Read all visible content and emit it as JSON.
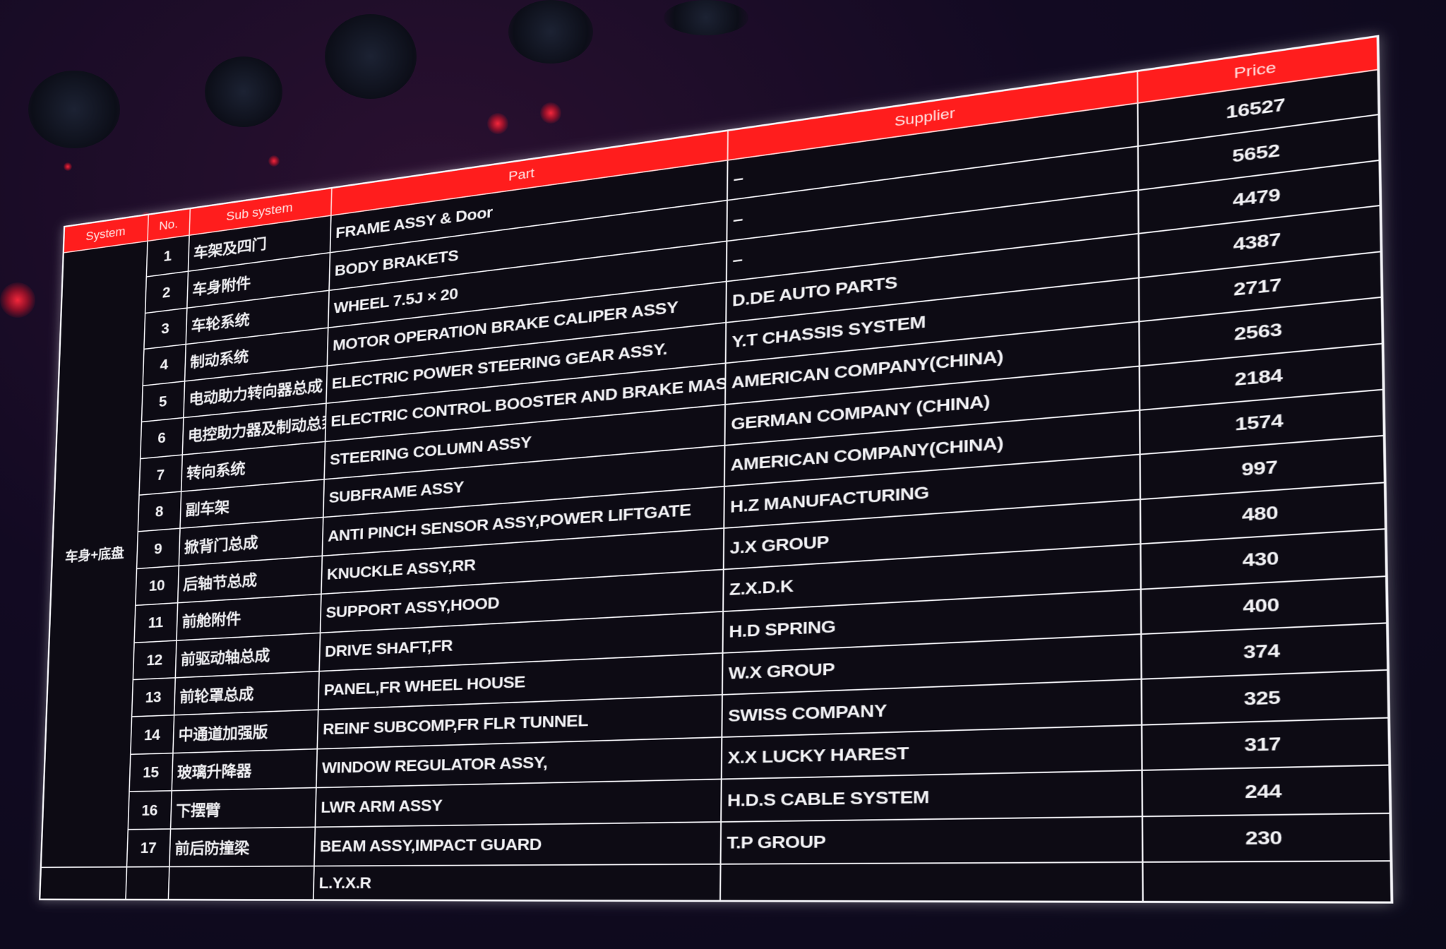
{
  "table": {
    "headers": {
      "system": "System",
      "no": "No.",
      "subsystem": "Sub system",
      "part": "Part",
      "supplier": "Supplier",
      "price": "Price"
    },
    "system_value": "车身+底盘",
    "rows": [
      {
        "no": "1",
        "subsystem": "车架及四门",
        "part": "FRAME ASSY & Door",
        "supplier": "–",
        "price": "16527"
      },
      {
        "no": "2",
        "subsystem": "车身附件",
        "part": "BODY BRAKETS",
        "supplier": "–",
        "price": "5652"
      },
      {
        "no": "3",
        "subsystem": "车轮系统",
        "part": "WHEEL 7.5J × 20",
        "supplier": "–",
        "price": "4479"
      },
      {
        "no": "4",
        "subsystem": "制动系统",
        "part": "MOTOR OPERATION BRAKE CALIPER ASSY",
        "supplier": "D.DE AUTO PARTS",
        "price": "4387"
      },
      {
        "no": "5",
        "subsystem": "电动助力转向器总成",
        "part": "ELECTRIC POWER STEERING GEAR ASSY.",
        "supplier": "Y.T CHASSIS SYSTEM",
        "price": "2717"
      },
      {
        "no": "6",
        "subsystem": "电控助力器及制动总泵",
        "part": "ELECTRIC CONTROL BOOSTER AND BRAKE MASTER CYLINDER",
        "supplier": "AMERICAN COMPANY(CHINA)",
        "price": "2563"
      },
      {
        "no": "7",
        "subsystem": "转向系统",
        "part": "STEERING COLUMN ASSY",
        "supplier": "GERMAN COMPANY (CHINA)",
        "price": "2184"
      },
      {
        "no": "8",
        "subsystem": "副车架",
        "part": "SUBFRAME ASSY",
        "supplier": "AMERICAN COMPANY(CHINA)",
        "price": "1574"
      },
      {
        "no": "9",
        "subsystem": "掀背门总成",
        "part": "ANTI PINCH SENSOR ASSY,POWER LIFTGATE",
        "supplier": "H.Z MANUFACTURING",
        "price": "997"
      },
      {
        "no": "10",
        "subsystem": "后轴节总成",
        "part": "KNUCKLE ASSY,RR",
        "supplier": "J.X GROUP",
        "price": "480"
      },
      {
        "no": "11",
        "subsystem": "前舱附件",
        "part": "SUPPORT ASSY,HOOD",
        "supplier": "Z.X.D.K",
        "price": "430"
      },
      {
        "no": "12",
        "subsystem": "前驱动轴总成",
        "part": "DRIVE SHAFT,FR",
        "supplier": "H.D SPRING",
        "price": "400"
      },
      {
        "no": "13",
        "subsystem": "前轮罩总成",
        "part": "PANEL,FR WHEEL HOUSE",
        "supplier": "W.X GROUP",
        "price": "374"
      },
      {
        "no": "14",
        "subsystem": "中通道加强版",
        "part": "REINF SUBCOMP,FR FLR TUNNEL",
        "supplier": "SWISS COMPANY",
        "price": "325"
      },
      {
        "no": "15",
        "subsystem": "玻璃升降器",
        "part": "WINDOW REGULATOR ASSY,",
        "supplier": "X.X LUCKY HAREST",
        "price": "317"
      },
      {
        "no": "16",
        "subsystem": "下摆臂",
        "part": "LWR ARM ASSY",
        "supplier": "H.D.S CABLE SYSTEM",
        "price": "244"
      },
      {
        "no": "17",
        "subsystem": "前后防撞梁",
        "part": "BEAM ASSY,IMPACT GUARD",
        "supplier": "T.P GROUP",
        "price": "230"
      }
    ],
    "extra_supplier": "L.Y.X.R"
  }
}
